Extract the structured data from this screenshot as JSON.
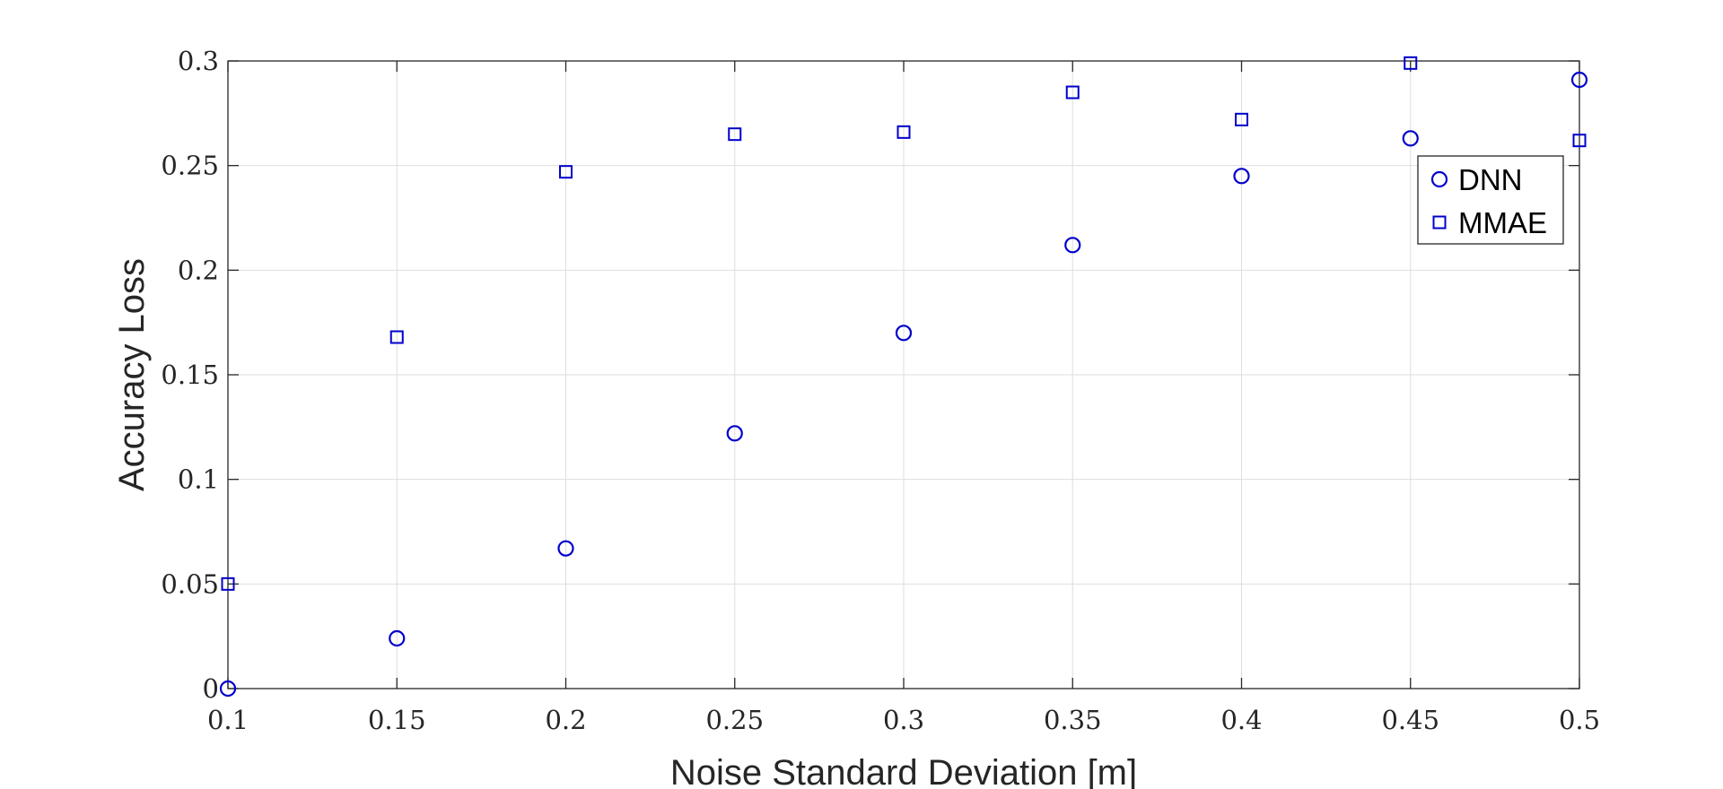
{
  "chart_data": {
    "type": "scatter",
    "title": "",
    "xlabel": "Noise Standard Deviation [m]",
    "ylabel": "Accuracy Loss",
    "xlim": [
      0.1,
      0.5
    ],
    "ylim": [
      0,
      0.3
    ],
    "grid": true,
    "legend_position": "top-right",
    "x_ticks": [
      0.1,
      0.15,
      0.2,
      0.25,
      0.3,
      0.35,
      0.4,
      0.45,
      0.5
    ],
    "x_tick_labels": [
      "0.1",
      "0.15",
      "0.2",
      "0.25",
      "0.3",
      "0.35",
      "0.4",
      "0.45",
      "0.5"
    ],
    "y_ticks": [
      0,
      0.05,
      0.1,
      0.15,
      0.2,
      0.25,
      0.3
    ],
    "y_tick_labels": [
      "0",
      "0.05",
      "0.1",
      "0.15",
      "0.2",
      "0.25",
      "0.3"
    ],
    "series": [
      {
        "name": "DNN",
        "marker": "circle",
        "color": "#0000cc",
        "x": [
          0.1,
          0.15,
          0.2,
          0.25,
          0.3,
          0.35,
          0.4,
          0.45,
          0.5
        ],
        "y": [
          0.0,
          0.024,
          0.067,
          0.122,
          0.17,
          0.212,
          0.245,
          0.263,
          0.291
        ]
      },
      {
        "name": "MMAE",
        "marker": "square",
        "color": "#0000cc",
        "x": [
          0.1,
          0.15,
          0.2,
          0.25,
          0.3,
          0.35,
          0.4,
          0.45,
          0.5
        ],
        "y": [
          0.05,
          0.168,
          0.247,
          0.265,
          0.266,
          0.285,
          0.272,
          0.299,
          0.262
        ]
      }
    ]
  }
}
